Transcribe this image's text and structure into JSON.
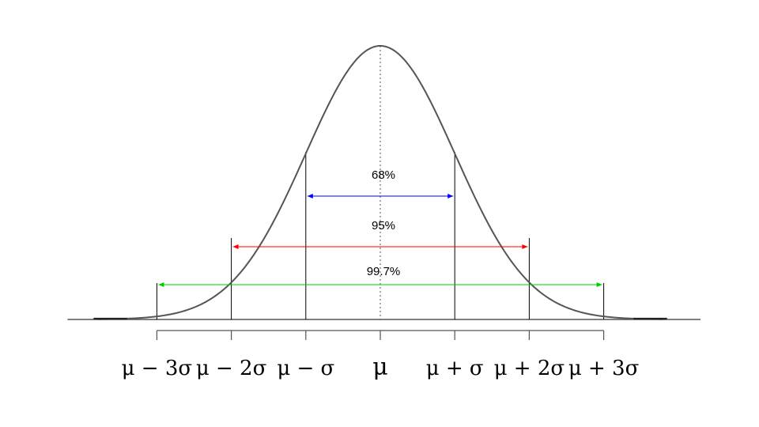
{
  "chart_data": {
    "type": "line",
    "title": "",
    "xlabel": "",
    "ylabel": "",
    "xlim": [
      -4.2,
      4.3
    ],
    "ylim": [
      0,
      0.4
    ],
    "curve": {
      "name": "normal density",
      "mean": 0,
      "sd": 1,
      "color": "#555555"
    },
    "x_ticks": [
      {
        "x": -3,
        "label": "μ − 3σ"
      },
      {
        "x": -2,
        "label": "μ − 2σ"
      },
      {
        "x": -1,
        "label": "μ − σ"
      },
      {
        "x": 0,
        "label": "μ"
      },
      {
        "x": 1,
        "label": "μ + σ"
      },
      {
        "x": 2,
        "label": "μ + 2σ"
      },
      {
        "x": 3,
        "label": "μ + 3σ"
      }
    ],
    "intervals": [
      {
        "from": -1,
        "to": 1,
        "label": "68%",
        "color": "#0000ff"
      },
      {
        "from": -2,
        "to": 2,
        "label": "95%",
        "color": "#ff0000"
      },
      {
        "from": -3,
        "to": 3,
        "label": "99.7%",
        "color": "#00cc00"
      }
    ],
    "mean_line": {
      "x": 0,
      "style": "dotted"
    },
    "grid": false,
    "legend": "none"
  }
}
